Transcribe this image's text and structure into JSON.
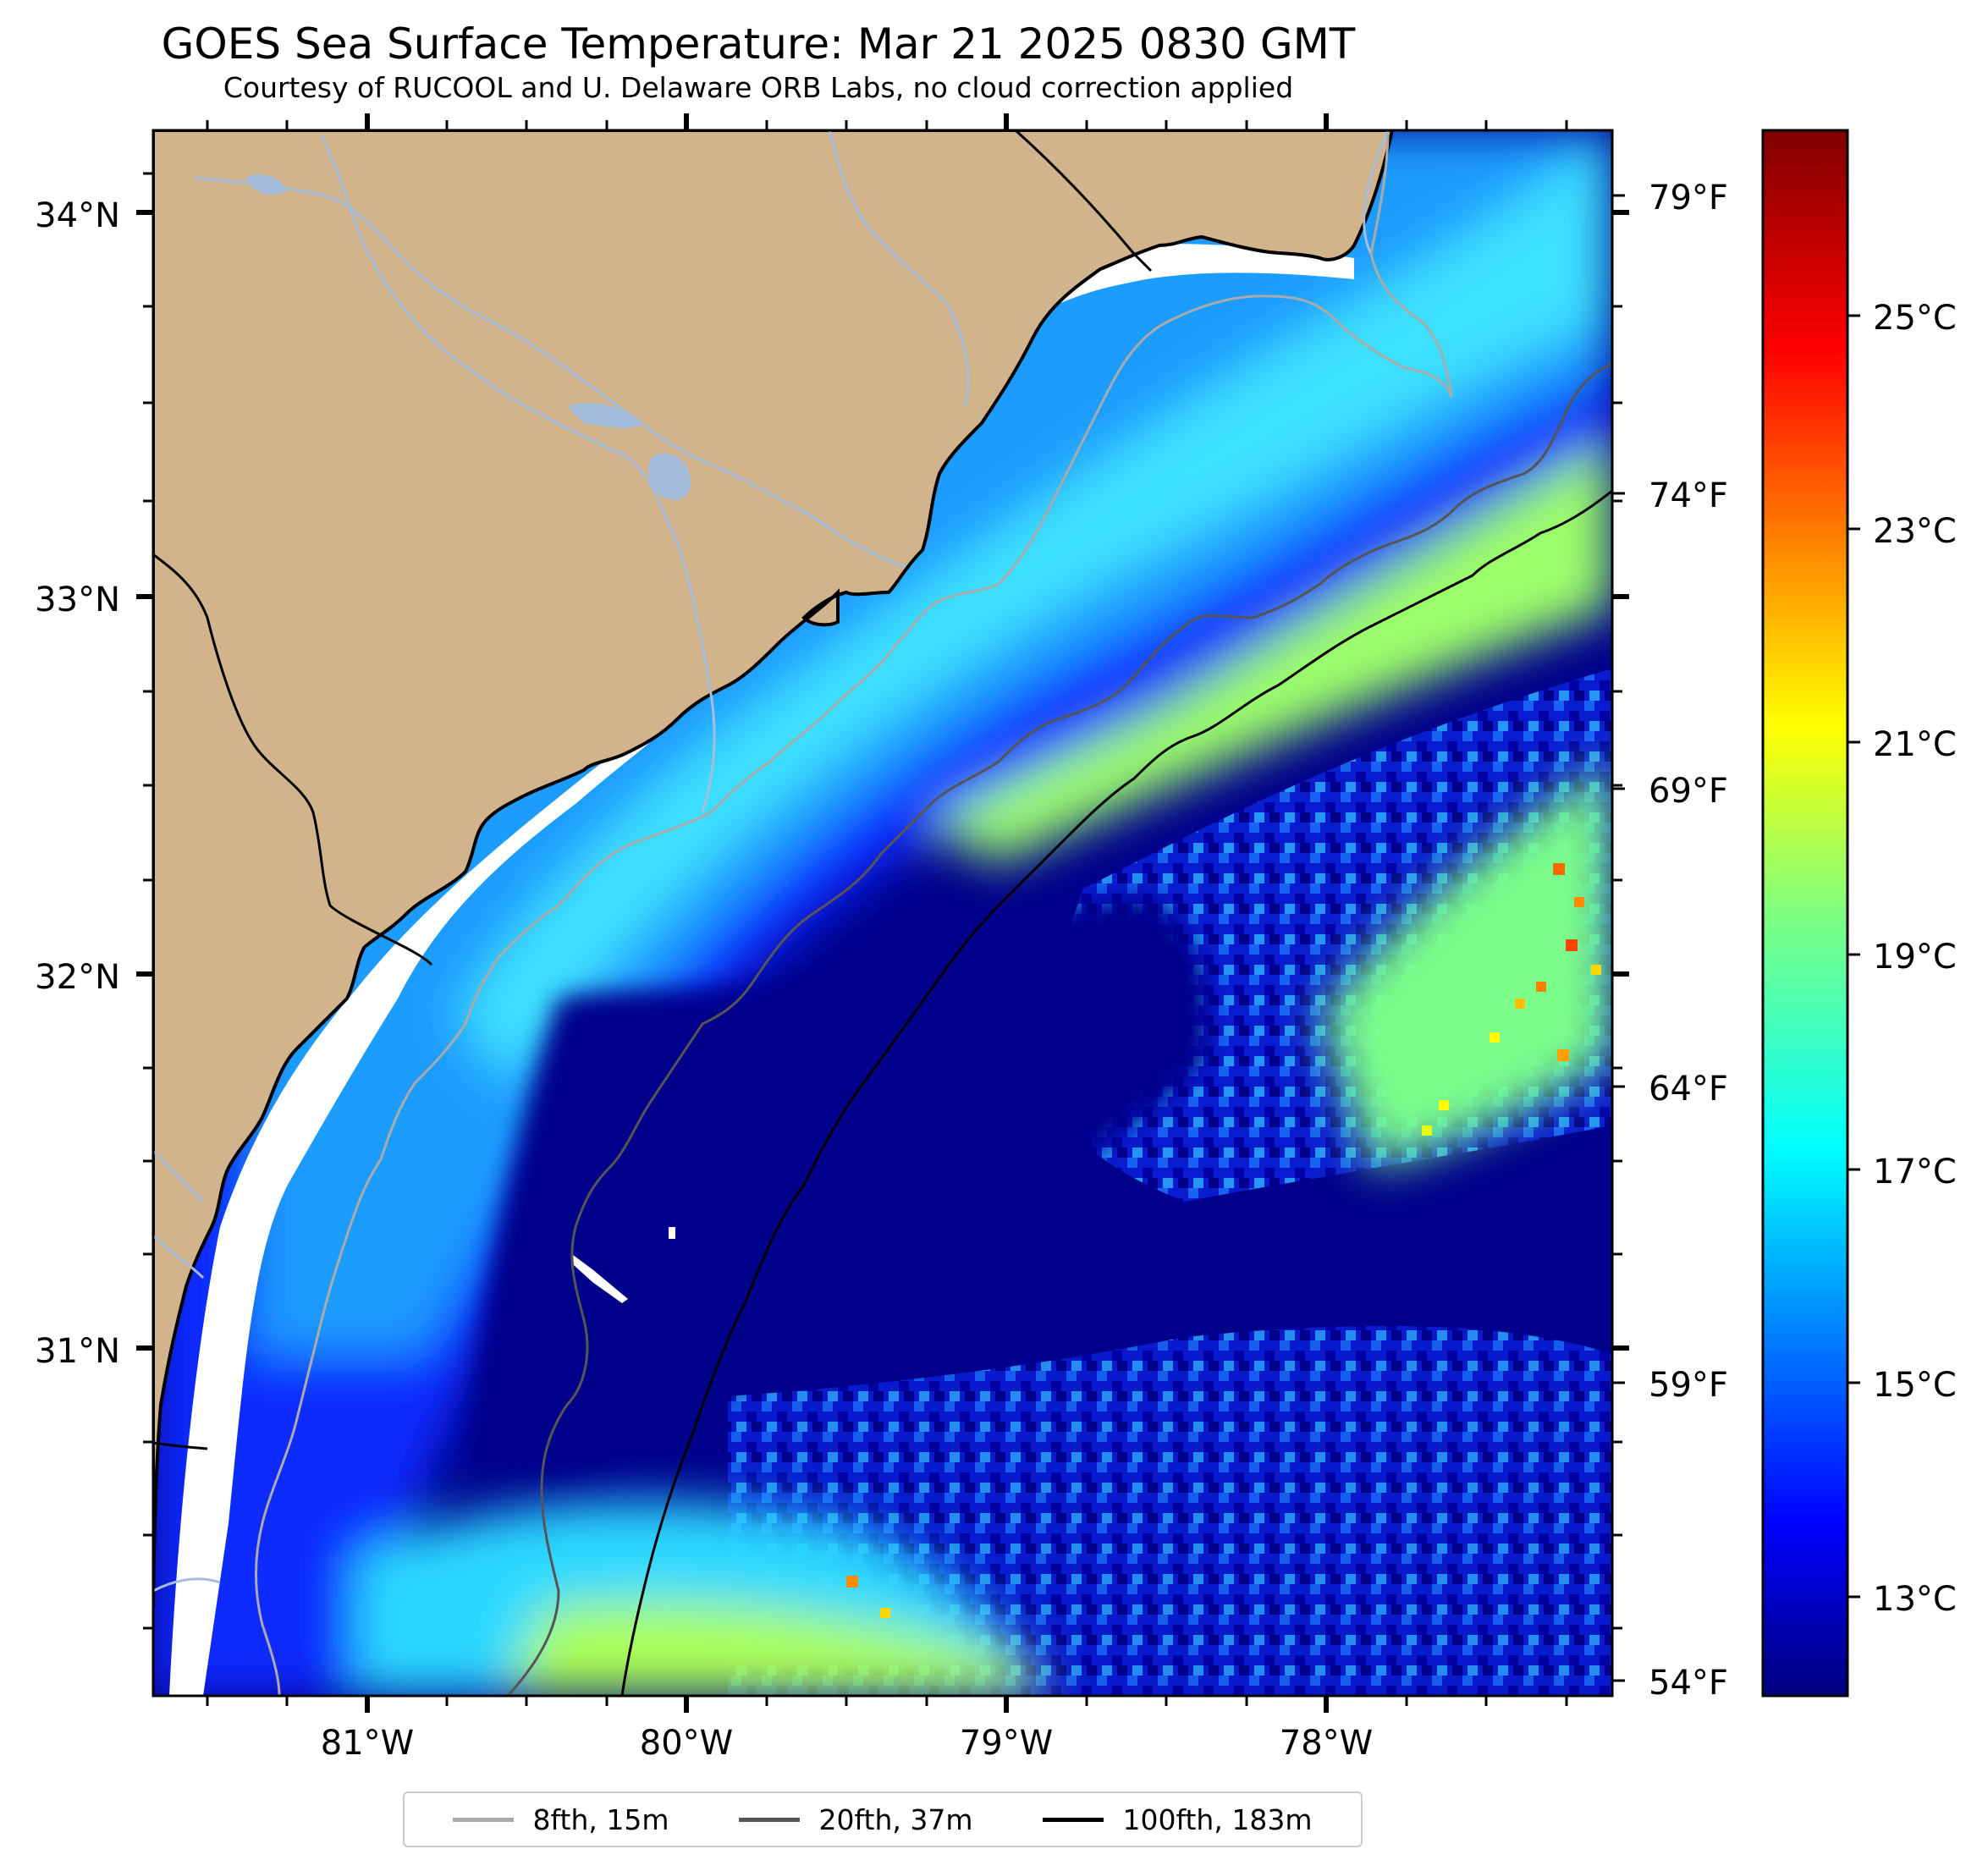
{
  "title": "GOES Sea Surface Temperature: Mar 21 2025 0830 GMT",
  "subtitle": "Courtesy of RUCOOL and U. Delaware ORB Labs, no cloud correction applied",
  "map": {
    "lat_labels": [
      "34°N",
      "33°N",
      "32°N",
      "31°N"
    ],
    "lon_labels": [
      "81°W",
      "80°W",
      "79°W",
      "78°W"
    ],
    "fahrenheit_labels": [
      "79°F",
      "74°F",
      "69°F",
      "64°F",
      "59°F",
      "54°F"
    ],
    "colors": {
      "land": "#d2b48c",
      "rivers": "#a6bddb",
      "cold_water": "#00008b",
      "isobath_8fth": "#aaaaaa",
      "isobath_20fth": "#555555",
      "isobath_100fth": "#000000"
    }
  },
  "colorbar": {
    "celsius_labels": [
      "25°C",
      "23°C",
      "21°C",
      "19°C",
      "17°C",
      "15°C",
      "13°C"
    ],
    "colormap": "jet"
  },
  "legend": {
    "items": [
      {
        "label": "8fth, 15m",
        "color": "#aaaaaa"
      },
      {
        "label": "20fth, 37m",
        "color": "#555555"
      },
      {
        "label": "100fth, 183m",
        "color": "#000000"
      }
    ]
  }
}
